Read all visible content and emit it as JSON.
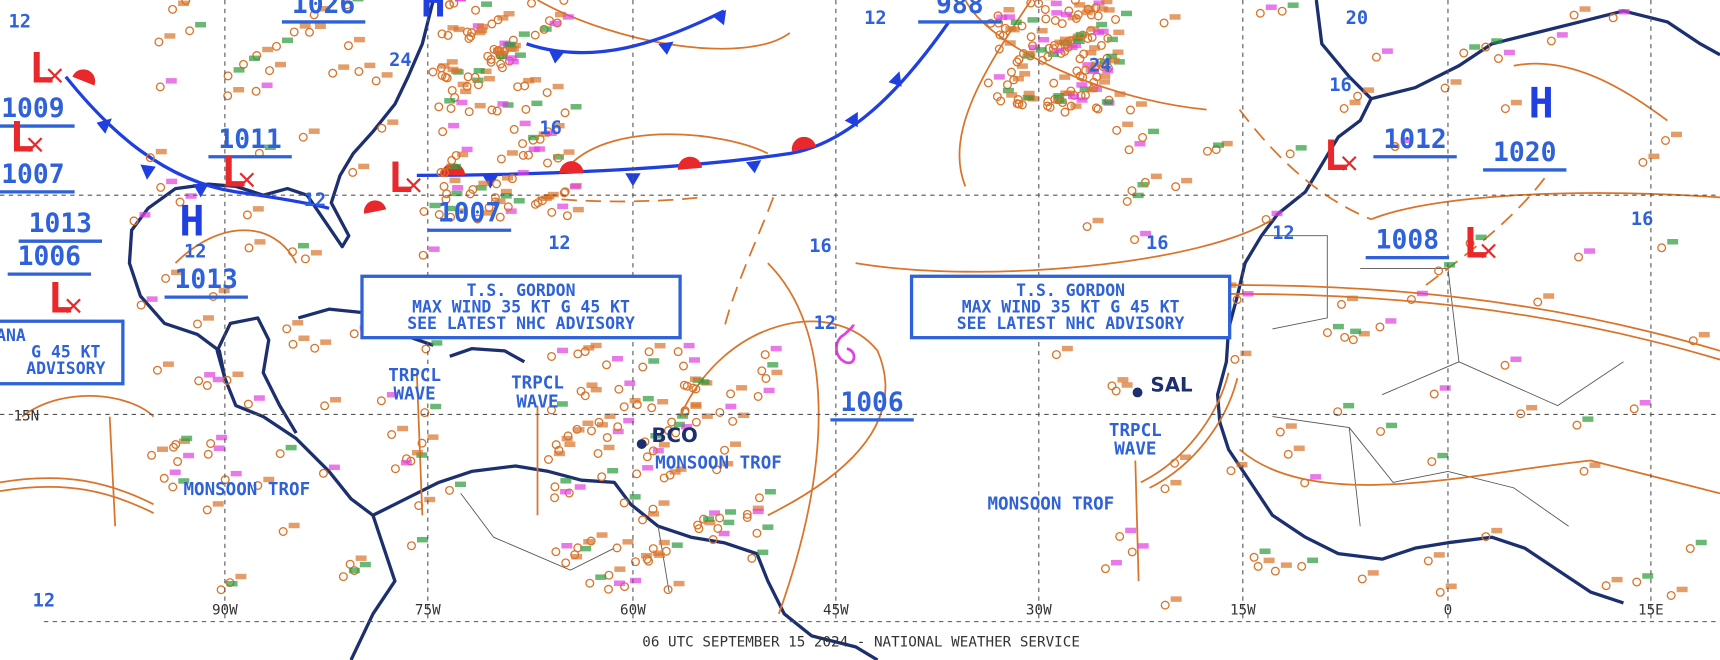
{
  "footer": "06 UTC SEPTEMBER 15 2024 - NATIONAL WEATHER SERVICE",
  "longitudes": [
    "90W",
    "75W",
    "60W",
    "45W",
    "30W",
    "15W",
    "0",
    "15E"
  ],
  "latitudes": [
    "15N"
  ],
  "pressure_labels": [
    1026,
    988,
    1009,
    1011,
    1007,
    1013,
    1006,
    1013,
    1007,
    1012,
    1020,
    1008,
    1006
  ],
  "high_symbols": [
    "H",
    "H",
    "H"
  ],
  "low_symbols": [
    "L",
    "L",
    "L",
    "L",
    "L",
    "L",
    "L"
  ],
  "isobar_labels": [
    12,
    24,
    16,
    12,
    12,
    12,
    16,
    12,
    16,
    12,
    16,
    20,
    24,
    16,
    12,
    12
  ],
  "advisory": [
    "T.S. GORDON",
    "MAX WIND 35 KT G 45 KT",
    "SEE LATEST NHC ADVISORY"
  ],
  "partial_advisory": [
    "ANA",
    "G 45 KT",
    "ADVISORY"
  ],
  "tropical_waves": [
    [
      "TRPCL",
      "WAVE"
    ],
    [
      "TRPCL",
      "WAVE"
    ],
    [
      "TRPCL",
      "WAVE"
    ]
  ],
  "monsoon_troughs": [
    "MONSOON TROF",
    "MONSOON TROF",
    "MONSOON TROF"
  ],
  "stations": [
    "SAL",
    "BCO"
  ]
}
